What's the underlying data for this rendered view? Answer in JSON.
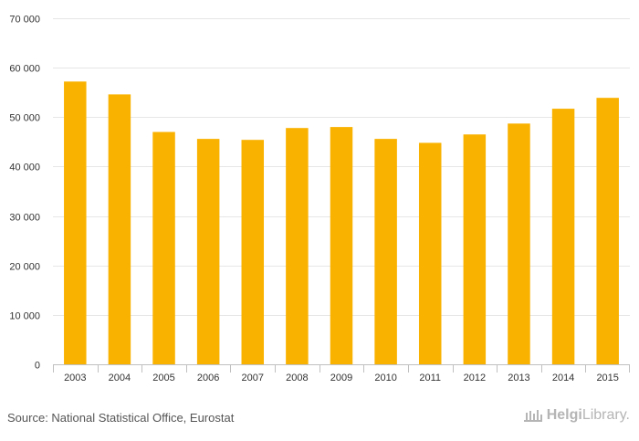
{
  "chart_data": {
    "type": "bar",
    "categories": [
      "2003",
      "2004",
      "2005",
      "2006",
      "2007",
      "2008",
      "2009",
      "2010",
      "2011",
      "2012",
      "2013",
      "2014",
      "2015"
    ],
    "values": [
      57200,
      54600,
      47000,
      45600,
      45400,
      47800,
      48000,
      45600,
      44800,
      46500,
      48700,
      51700,
      53900
    ],
    "ylim": [
      0,
      70000
    ],
    "yticks": [
      0,
      10000,
      20000,
      30000,
      40000,
      50000,
      60000,
      70000
    ],
    "ytick_labels": [
      "0",
      "10 000",
      "20 000",
      "30 000",
      "40 000",
      "50 000",
      "60 000",
      "70 000"
    ],
    "grid": true,
    "title": "",
    "xlabel": "",
    "ylabel": "",
    "bar_color": "#F9B200",
    "grid_color": "#E6E6E6"
  },
  "footer": {
    "source": "Source: National Statistical Office, Eurostat",
    "logo_helgi": "Helgi",
    "logo_library": "Library."
  }
}
